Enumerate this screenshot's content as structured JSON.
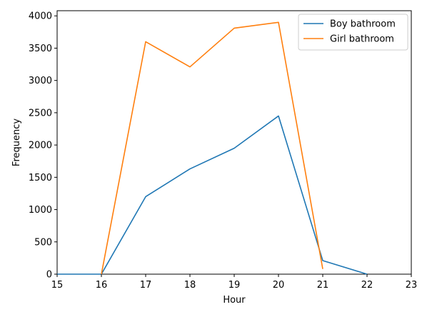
{
  "chart_data": {
    "type": "line",
    "title": "",
    "xlabel": "Hour",
    "ylabel": "Frequency",
    "xlim": [
      15,
      23
    ],
    "ylim": [
      0,
      4080
    ],
    "xticks": [
      15,
      16,
      17,
      18,
      19,
      20,
      21,
      22,
      23
    ],
    "yticks": [
      0,
      500,
      1000,
      1500,
      2000,
      2500,
      3000,
      3500,
      4000
    ],
    "grid": false,
    "legend_position": "top-right",
    "series": [
      {
        "name": "Boy bathroom",
        "color": "#1f77b4",
        "x": [
          15,
          16,
          17,
          18,
          19,
          20,
          21,
          22
        ],
        "y": [
          0,
          0,
          1200,
          1630,
          1950,
          2450,
          210,
          0
        ]
      },
      {
        "name": "Girl bathroom",
        "color": "#ff7f0e",
        "x": [
          16,
          17,
          18,
          19,
          20,
          21
        ],
        "y": [
          0,
          3600,
          3210,
          3810,
          3900,
          80
        ]
      }
    ]
  }
}
